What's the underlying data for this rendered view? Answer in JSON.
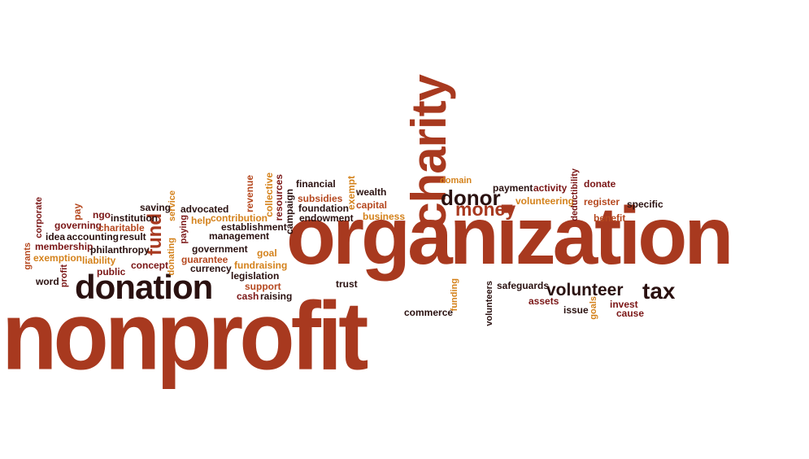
{
  "words": {
    "nonprofit": "nonprofit",
    "organization": "organization",
    "charity": "charity",
    "donation": "donation",
    "donor": "donor",
    "money": "money",
    "volunteer": "volunteer",
    "tax": "tax",
    "fund": "fund",
    "financial": "financial",
    "subsidies": "subsidies",
    "foundation": "foundation",
    "endowment": "endowment",
    "wealth": "wealth",
    "capital": "capital",
    "business": "business",
    "exempt": "exempt",
    "domain": "domain",
    "payment": "payment",
    "activity": "activity",
    "volunteering": "volunteering",
    "deductibility": "deductibility",
    "donate": "donate",
    "register": "register",
    "specific": "specific",
    "benefit": "benefit",
    "revenue": "revenue",
    "collective": "collective",
    "resources": "resources",
    "campaign": "campaign",
    "saving": "saving",
    "service": "service",
    "advocated": "advocated",
    "help": "help",
    "contribution": "contribution",
    "paying": "paying",
    "establishment": "establishment",
    "management": "management",
    "government": "government",
    "goal": "goal",
    "guarantee": "guarantee",
    "currency": "currency",
    "fundraising": "fundraising",
    "legislation": "legislation",
    "support": "support",
    "cash": "cash",
    "raising": "raising",
    "donating": "donating",
    "corporate": "corporate",
    "pay": "pay",
    "ngo": "ngo",
    "institution": "institution",
    "governing": "governing",
    "charitable": "charitable",
    "result": "result",
    "idea": "idea",
    "accounting": "accounting",
    "membership": "membership",
    "philanthropy": "philanthropy",
    "grants": "grants",
    "exemption": "exemption",
    "liability": "liability",
    "concept": "concept",
    "public": "public",
    "word": "word",
    "profit": "profit",
    "trust": "trust",
    "commerce": "commerce",
    "funding": "funding",
    "volunteers": "volunteers",
    "safeguards": "safeguards",
    "assets": "assets",
    "issue": "issue",
    "goals": "goals",
    "invest": "invest",
    "cause": "cause"
  }
}
